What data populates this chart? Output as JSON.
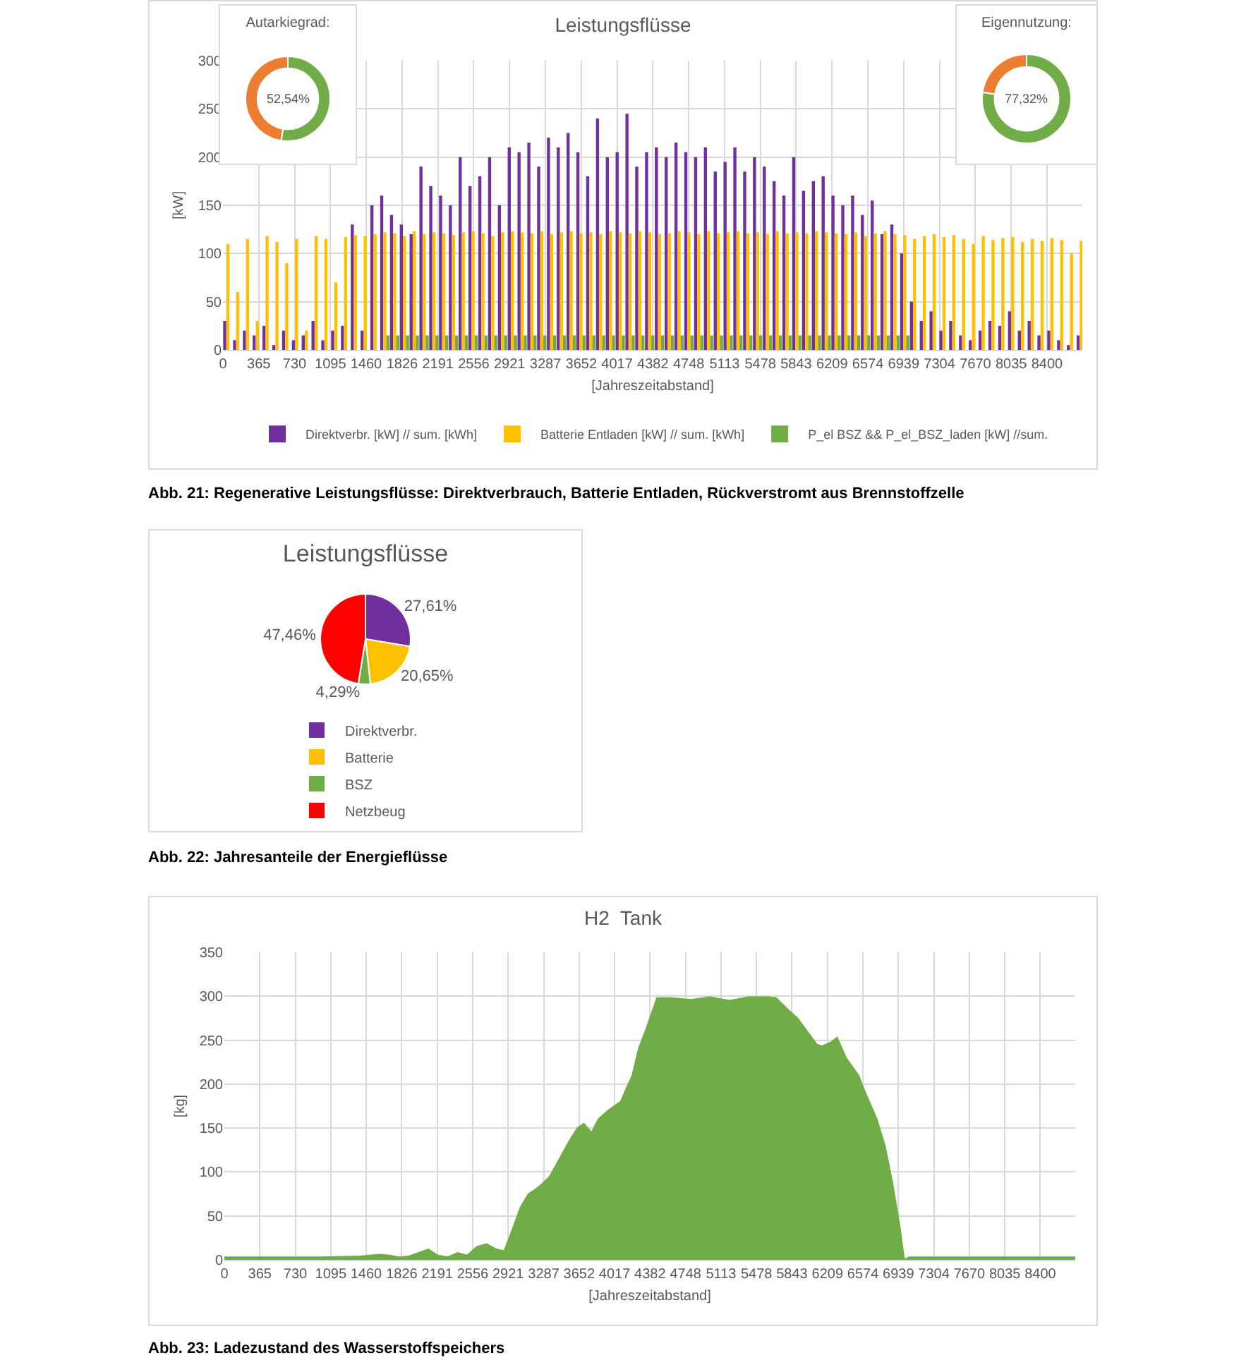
{
  "chart_data": [
    {
      "type": "bar",
      "title": "Leistungsflüsse",
      "xlabel": "[Jahreszeitabstand]",
      "ylabel": "[kW]",
      "annotations": [
        "Abb. 21: Regenerative Leistungsflüsse: Direktverbrauch, Batterie Entladen, Rückverstromt aus Brennstoffzelle"
      ],
      "x": [
        50,
        150,
        250,
        350,
        450,
        550,
        650,
        750,
        850,
        950,
        1050,
        1150,
        1250,
        1350,
        1450,
        1550,
        1650,
        1750,
        1850,
        1950,
        2050,
        2150,
        2250,
        2350,
        2450,
        2550,
        2650,
        2750,
        2850,
        2950,
        3050,
        3150,
        3250,
        3350,
        3450,
        3550,
        3650,
        3750,
        3850,
        3950,
        4050,
        4150,
        4250,
        4350,
        4450,
        4550,
        4650,
        4750,
        4850,
        4950,
        5050,
        5150,
        5250,
        5350,
        5450,
        5550,
        5650,
        5750,
        5850,
        5950,
        6050,
        6150,
        6250,
        6350,
        6450,
        6550,
        6650,
        6750,
        6850,
        6950,
        7050,
        7150,
        7250,
        7350,
        7450,
        7550,
        7650,
        7750,
        7850,
        7950,
        8050,
        8150,
        8250,
        8350,
        8450,
        8550,
        8650,
        8750
      ],
      "series": [
        {
          "name": "Direktverbr. [kW] // sum. [kWh]",
          "color": "#7030a0",
          "values": [
            30,
            10,
            20,
            15,
            25,
            5,
            20,
            10,
            15,
            30,
            10,
            20,
            25,
            130,
            20,
            150,
            160,
            140,
            130,
            120,
            190,
            170,
            160,
            150,
            200,
            170,
            180,
            200,
            150,
            210,
            205,
            215,
            190,
            220,
            210,
            225,
            205,
            180,
            240,
            200,
            205,
            245,
            190,
            205,
            210,
            200,
            215,
            205,
            200,
            210,
            185,
            195,
            210,
            185,
            200,
            190,
            175,
            160,
            200,
            165,
            175,
            180,
            160,
            150,
            160,
            140,
            155,
            120,
            130,
            100,
            50,
            30,
            40,
            20,
            30,
            15,
            10,
            20,
            30,
            25,
            40,
            20,
            30,
            15,
            20,
            10,
            5,
            15
          ]
        },
        {
          "name": "Batterie Entladen [kW] // sum. [kWh]",
          "color": "#ffc000",
          "values": [
            110,
            60,
            115,
            30,
            118,
            112,
            90,
            115,
            20,
            118,
            115,
            70,
            117,
            119,
            118,
            120,
            122,
            121,
            118,
            123,
            120,
            122,
            121,
            119,
            122,
            123,
            121,
            118,
            122,
            123,
            122,
            121,
            123,
            120,
            122,
            123,
            121,
            122,
            120,
            123,
            122,
            121,
            123,
            122,
            120,
            121,
            123,
            122,
            120,
            123,
            121,
            122,
            123,
            121,
            122,
            120,
            123,
            121,
            122,
            121,
            123,
            122,
            121,
            120,
            122,
            118,
            121,
            123,
            120,
            119,
            115,
            118,
            120,
            117,
            119,
            115,
            110,
            118,
            114,
            116,
            117,
            112,
            115,
            113,
            116,
            114,
            100,
            113
          ]
        },
        {
          "name": "P_el BSZ && P_el_BSZ_laden [kW] //sum.",
          "color": "#70ad47",
          "values": [
            0,
            0,
            0,
            0,
            0,
            0,
            0,
            0,
            0,
            0,
            0,
            0,
            0,
            0,
            0,
            0,
            15,
            15,
            15,
            15,
            15,
            15,
            15,
            15,
            15,
            15,
            15,
            15,
            15,
            15,
            15,
            15,
            15,
            15,
            15,
            15,
            15,
            15,
            15,
            15,
            15,
            15,
            15,
            15,
            15,
            15,
            15,
            15,
            15,
            15,
            15,
            15,
            15,
            15,
            15,
            15,
            15,
            15,
            15,
            15,
            15,
            15,
            15,
            15,
            15,
            15,
            15,
            15,
            15,
            15,
            0,
            0,
            0,
            0,
            0,
            0,
            0,
            0,
            0,
            0,
            0,
            0,
            0,
            0,
            0,
            0,
            0,
            0
          ]
        }
      ],
      "xlim": [
        0,
        8760
      ],
      "xticks": [
        0,
        365,
        730,
        1095,
        1460,
        1826,
        2191,
        2556,
        2921,
        3287,
        3652,
        4017,
        4382,
        4748,
        5113,
        5478,
        5843,
        6209,
        6574,
        6939,
        7304,
        7670,
        8035,
        8400
      ],
      "ylim": [
        0,
        300
      ],
      "yticks": [
        0,
        50,
        100,
        150,
        200,
        250,
        300
      ],
      "grid": true,
      "legend": "bottom"
    },
    {
      "type": "donut",
      "title": "Autarkiegrad:",
      "categories": [
        null,
        null
      ],
      "values": [
        52.54,
        47.46
      ],
      "colors": [
        "#70ad47",
        "#ed7d31"
      ],
      "annotations": [
        "52,54%"
      ]
    },
    {
      "type": "donut",
      "title": "Eigennutzung:",
      "categories": [
        null,
        null
      ],
      "values": [
        77.32,
        22.68
      ],
      "colors": [
        "#70ad47",
        "#ed7d31"
      ],
      "annotations": [
        "77,32%"
      ]
    },
    {
      "type": "pie",
      "title": "Leistungsflüsse",
      "categories": [
        "Direktverbr.",
        "Batterie",
        "BSZ",
        "Netzbeug"
      ],
      "values": [
        27.61,
        20.65,
        4.29,
        47.46
      ],
      "colors": [
        "#7030a0",
        "#ffc000",
        "#70ad47",
        "#ff0000"
      ],
      "value_labels": [
        "27,61%",
        "20,65%",
        "4,29%",
        "47,46%"
      ],
      "legend": "bottom",
      "annotations": [
        "Abb. 22: Jahresanteile der Energieflüsse"
      ]
    },
    {
      "type": "area",
      "title": "H2  Tank",
      "xlabel": "[Jahreszeitabstand]",
      "ylabel": "[kg]",
      "annotations": [
        "Abb. 23: Ladezustand des Wasserstoffspeichers"
      ],
      "x": [
        0,
        500,
        1000,
        1400,
        1500,
        1600,
        1700,
        1800,
        1900,
        2000,
        2100,
        2200,
        2300,
        2400,
        2500,
        2600,
        2700,
        2800,
        2880,
        2950,
        3050,
        3132,
        3200,
        3258,
        3350,
        3450,
        3550,
        3635,
        3700,
        3780,
        3850,
        3950,
        4013,
        4080,
        4138,
        4200,
        4264,
        4350,
        4453,
        4600,
        4800,
        5000,
        5200,
        5400,
        5600,
        5680,
        5800,
        5900,
        6000,
        6100,
        6150,
        6250,
        6308,
        6400,
        6528,
        6600,
        6717,
        6800,
        6874,
        6950,
        7000,
        7050,
        7300,
        7700,
        8100,
        8500,
        8760
      ],
      "series": [
        {
          "color": "#70ad47",
          "values": [
            3,
            3,
            3,
            4,
            5,
            6,
            5,
            3,
            4,
            8,
            12,
            5,
            3,
            8,
            5,
            15,
            18,
            12,
            10,
            30,
            60,
            75,
            80,
            85,
            95,
            115,
            135,
            150,
            155,
            145,
            160,
            170,
            175,
            180,
            195,
            210,
            240,
            265,
            298,
            298,
            296,
            299,
            295,
            299,
            299,
            298,
            285,
            275,
            260,
            245,
            243,
            248,
            253,
            230,
            210,
            190,
            160,
            130,
            90,
            40,
            0,
            3,
            3,
            3,
            3,
            3,
            3
          ]
        }
      ],
      "xlim": [
        0,
        8760
      ],
      "xticks": [
        0,
        365,
        730,
        1095,
        1460,
        1826,
        2191,
        2556,
        2921,
        3287,
        3652,
        4017,
        4382,
        4748,
        5113,
        5478,
        5843,
        6209,
        6574,
        6939,
        7304,
        7670,
        8035,
        8400
      ],
      "ylim": [
        0,
        350
      ],
      "yticks": [
        0,
        50,
        100,
        150,
        200,
        250,
        300,
        350
      ],
      "grid": true
    }
  ]
}
